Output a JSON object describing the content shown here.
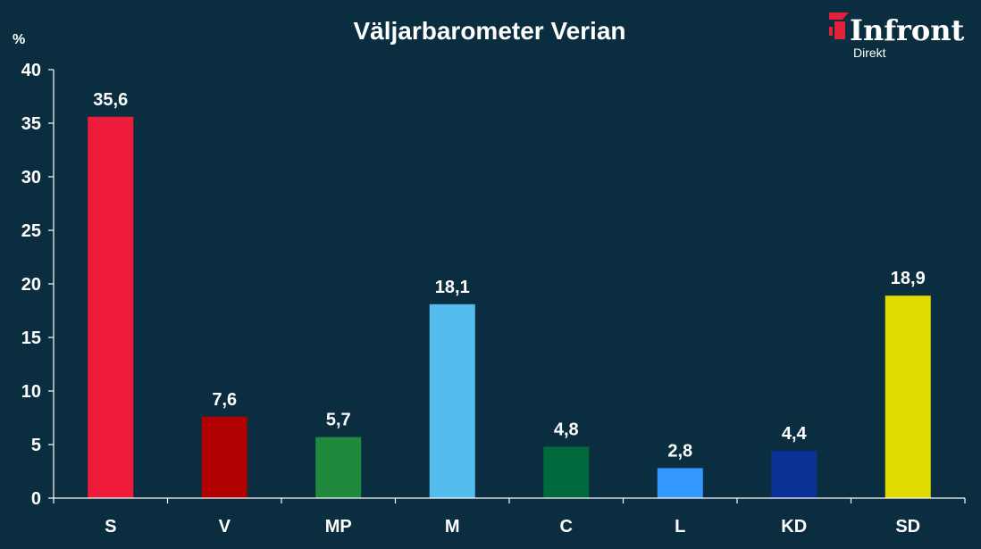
{
  "chart_data": {
    "type": "bar",
    "title": "Väljarbarometer Verian",
    "ylabel": "%",
    "xlabel": "",
    "ylim": [
      0,
      40
    ],
    "yticks": [
      0,
      5,
      10,
      15,
      20,
      25,
      30,
      35,
      40
    ],
    "grid": false,
    "legend": "none",
    "categories": [
      "S",
      "V",
      "MP",
      "M",
      "C",
      "L",
      "KD",
      "SD"
    ],
    "values": [
      35.6,
      7.6,
      5.7,
      18.1,
      4.8,
      2.8,
      4.4,
      18.9
    ],
    "value_labels": [
      "35,6",
      "7,6",
      "5,7",
      "18,1",
      "4,8",
      "2,8",
      "4,4",
      "18,9"
    ],
    "colors": [
      "#ee1c3a",
      "#b00000",
      "#208a3c",
      "#54bdee",
      "#006a3c",
      "#3399ff",
      "#0a3296",
      "#e0dc00"
    ]
  },
  "logo": {
    "name": "Infront",
    "subtitle": "Direkt",
    "icon": "infront-logo-icon",
    "accent": "#e2223a"
  },
  "colors": {
    "background": "#0b2d40",
    "axis": "#ffffff",
    "text": "#ffffff"
  }
}
